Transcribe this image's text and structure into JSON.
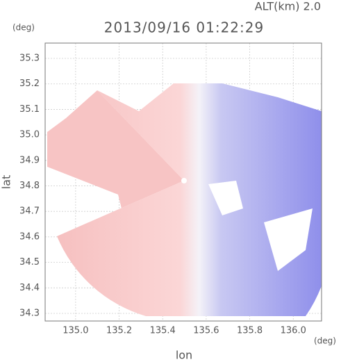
{
  "chart_data": {
    "type": "image",
    "title": "2013/09/16 01:22:29",
    "subtitle": "ALT(km) 2.0",
    "x_label": "lon",
    "y_label": "lat",
    "x_unit": "(deg)",
    "y_unit": "(deg)",
    "xlim": [
      134.86,
      136.13
    ],
    "ylim": [
      34.27,
      35.36
    ],
    "xticks": [
      {
        "value": 135.0,
        "label": "135.0"
      },
      135.2,
      135.4,
      135.6,
      135.8,
      {
        "value": 136.0,
        "label": "136.0"
      }
    ],
    "yticks": [
      34.3,
      34.4,
      34.5,
      34.6,
      34.7,
      34.8,
      34.9,
      {
        "value": 35.0,
        "label": "35.0"
      },
      35.1,
      35.2,
      35.3
    ],
    "grid": true
  }
}
